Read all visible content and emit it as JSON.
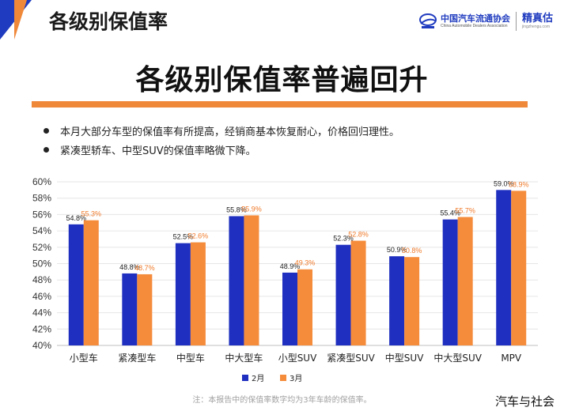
{
  "header": {
    "title": "各级别保值率"
  },
  "logo": {
    "org_name": "中国汽车流通协会",
    "org_sub": "China Automobile Dealers Association",
    "brand": "精真估",
    "brand_sub": "jingzhengu.com"
  },
  "main_title": "各级别保值率普遍回升",
  "bullets": [
    "本月大部分车型的保值率有所提高，经销商基本恢复耐心，价格回归理性。",
    "紧凑型轿车、中型SUV的保值率略微下降。"
  ],
  "colors": {
    "feb": "#1f2fbf",
    "mar": "#f58c3c",
    "accent": "#f0883a"
  },
  "chart_data": {
    "type": "bar",
    "categories": [
      "小型车",
      "紧凑型车",
      "中型车",
      "中大型车",
      "小型SUV",
      "紧凑型SUV",
      "中型SUV",
      "中大型SUV",
      "MPV"
    ],
    "series": [
      {
        "name": "2月",
        "values": [
          54.8,
          48.8,
          52.5,
          55.8,
          48.9,
          52.3,
          50.9,
          55.4,
          59.0
        ]
      },
      {
        "name": "3月",
        "values": [
          55.3,
          48.7,
          52.6,
          55.9,
          49.3,
          52.8,
          50.8,
          55.7,
          58.9
        ]
      }
    ],
    "ylim": [
      40,
      60
    ],
    "yticks": [
      "40%",
      "42%",
      "44%",
      "46%",
      "48%",
      "50%",
      "52%",
      "54%",
      "56%",
      "58%",
      "60%"
    ],
    "grid": true,
    "legend": "bottom"
  },
  "note": "注：本报告中的保值率数字均为3年车龄的保值率。",
  "watermark": "汽车与社会"
}
